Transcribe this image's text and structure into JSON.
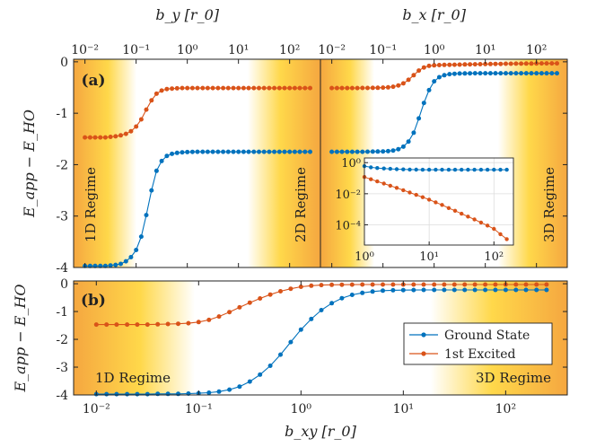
{
  "chart_data": [
    {
      "type": "line",
      "panel_label": "(a)",
      "ylabel": "E_app − E_HO",
      "xlabel_top_left": "b_y [r_0]",
      "xlabel_top_right": "b_x [r_0]",
      "xscale": "log",
      "ylim": [
        -4,
        0.05
      ],
      "yticks": [
        0,
        -1,
        -2,
        -3,
        -4
      ],
      "ytick_labels": [
        "0",
        "-1",
        "-2",
        "-3",
        "-4"
      ],
      "xlim_left": [
        0.006,
        400
      ],
      "xlim_right": [
        0.006,
        400
      ],
      "xticks": [
        0.01,
        0.1,
        1,
        10,
        100
      ],
      "xtick_labels": [
        "10⁻²",
        "10⁻¹",
        "10⁰",
        "10¹",
        "10²"
      ],
      "regime_labels": [
        "1D Regime",
        "2D Regime",
        "3D Regime"
      ],
      "left_half": {
        "x": [
          0.01,
          0.0126,
          0.0158,
          0.02,
          0.0251,
          0.0316,
          0.0398,
          0.0501,
          0.0631,
          0.0794,
          0.1,
          0.126,
          0.158,
          0.2,
          0.251,
          0.316,
          0.398,
          0.501,
          0.631,
          0.794,
          1.0,
          1.26,
          1.58,
          2.0,
          2.51,
          3.16,
          3.98,
          5.01,
          6.31,
          7.94,
          10,
          12.6,
          15.8,
          20,
          25.1,
          31.6,
          39.8,
          50.1,
          63.1,
          79.4,
          100,
          126,
          158,
          200,
          251
        ],
        "series": [
          {
            "name": "Ground State",
            "values": [
              -3.97,
              -3.97,
              -3.97,
              -3.97,
              -3.97,
              -3.96,
              -3.95,
              -3.93,
              -3.88,
              -3.8,
              -3.66,
              -3.4,
              -2.98,
              -2.5,
              -2.12,
              -1.93,
              -1.83,
              -1.79,
              -1.77,
              -1.76,
              -1.755,
              -1.752,
              -1.75,
              -1.75,
              -1.75,
              -1.75,
              -1.75,
              -1.75,
              -1.75,
              -1.75,
              -1.75,
              -1.75,
              -1.75,
              -1.75,
              -1.75,
              -1.75,
              -1.75,
              -1.75,
              -1.75,
              -1.75,
              -1.75,
              -1.75,
              -1.75,
              -1.75,
              -1.75
            ]
          },
          {
            "name": "1st Excited",
            "values": [
              -1.47,
              -1.47,
              -1.47,
              -1.47,
              -1.47,
              -1.46,
              -1.45,
              -1.43,
              -1.4,
              -1.35,
              -1.26,
              -1.12,
              -0.93,
              -0.75,
              -0.62,
              -0.56,
              -0.53,
              -0.52,
              -0.515,
              -0.51,
              -0.51,
              -0.51,
              -0.51,
              -0.51,
              -0.51,
              -0.51,
              -0.51,
              -0.51,
              -0.51,
              -0.51,
              -0.51,
              -0.51,
              -0.51,
              -0.51,
              -0.51,
              -0.51,
              -0.51,
              -0.51,
              -0.51,
              -0.51,
              -0.51,
              -0.51,
              -0.51,
              -0.51,
              -0.51
            ]
          }
        ]
      },
      "right_half": {
        "x": [
          0.01,
          0.0126,
          0.0158,
          0.02,
          0.0251,
          0.0316,
          0.0398,
          0.0501,
          0.0631,
          0.0794,
          0.1,
          0.126,
          0.158,
          0.2,
          0.251,
          0.316,
          0.398,
          0.501,
          0.631,
          0.794,
          1.0,
          1.26,
          1.58,
          2.0,
          2.51,
          3.16,
          3.98,
          5.01,
          6.31,
          7.94,
          10,
          12.6,
          15.8,
          20,
          25.1,
          31.6,
          39.8,
          50.1,
          63.1,
          79.4,
          100,
          126,
          158,
          200,
          251
        ],
        "series": [
          {
            "name": "Ground State",
            "values": [
              -1.75,
              -1.75,
              -1.75,
              -1.75,
              -1.75,
              -1.75,
              -1.749,
              -1.748,
              -1.747,
              -1.745,
              -1.742,
              -1.737,
              -1.725,
              -1.7,
              -1.65,
              -1.55,
              -1.38,
              -1.1,
              -0.8,
              -0.55,
              -0.38,
              -0.3,
              -0.26,
              -0.24,
              -0.232,
              -0.228,
              -0.225,
              -0.224,
              -0.223,
              -0.222,
              -0.222,
              -0.222,
              -0.222,
              -0.222,
              -0.222,
              -0.222,
              -0.222,
              -0.222,
              -0.222,
              -0.222,
              -0.222,
              -0.222,
              -0.222,
              -0.222,
              -0.222
            ]
          },
          {
            "name": "1st Excited",
            "values": [
              -0.51,
              -0.51,
              -0.51,
              -0.51,
              -0.51,
              -0.51,
              -0.509,
              -0.508,
              -0.507,
              -0.505,
              -0.502,
              -0.497,
              -0.485,
              -0.46,
              -0.42,
              -0.35,
              -0.26,
              -0.17,
              -0.11,
              -0.08,
              -0.068,
              -0.063,
              -0.06,
              -0.058,
              -0.056,
              -0.054,
              -0.052,
              -0.05,
              -0.048,
              -0.046,
              -0.045,
              -0.043,
              -0.041,
              -0.04,
              -0.038,
              -0.037,
              -0.036,
              -0.035,
              -0.034,
              -0.033,
              -0.032,
              -0.031,
              -0.03,
              -0.03,
              -0.03
            ]
          }
        ]
      }
    },
    {
      "type": "line",
      "panel_label": "(a) inset",
      "xscale": "log",
      "yscale": "log",
      "xlim": [
        1,
        200
      ],
      "ylim": [
        5e-06,
        2
      ],
      "xticks": [
        1,
        10,
        100
      ],
      "xtick_labels": [
        "10⁰",
        "10¹",
        "10²"
      ],
      "yticks": [
        1,
        0.01,
        0.0001
      ],
      "ytick_labels": [
        "10⁰",
        "10⁻²",
        "10⁻⁴"
      ],
      "x": [
        1.0,
        1.26,
        1.58,
        2.0,
        2.51,
        3.16,
        3.98,
        5.01,
        6.31,
        7.94,
        10,
        12.6,
        15.8,
        20,
        25.1,
        31.6,
        39.8,
        50.1,
        63.1,
        79.4,
        100,
        126,
        158
      ],
      "series": [
        {
          "name": "Ground State",
          "values": [
            0.6,
            0.5,
            0.45,
            0.42,
            0.4,
            0.38,
            0.37,
            0.36,
            0.355,
            0.35,
            0.35,
            0.35,
            0.35,
            0.35,
            0.35,
            0.35,
            0.35,
            0.35,
            0.35,
            0.35,
            0.35,
            0.35,
            0.35
          ]
        },
        {
          "name": "1st Excited",
          "values": [
            0.12,
            0.085,
            0.062,
            0.045,
            0.033,
            0.024,
            0.017,
            0.012,
            0.0085,
            0.006,
            0.0042,
            0.0028,
            0.0019,
            0.0012,
            0.0008,
            0.00052,
            0.00034,
            0.00022,
            0.00014,
            9e-05,
            5.5e-05,
            2.5e-05,
            1.2e-05
          ]
        }
      ]
    },
    {
      "type": "line",
      "panel_label": "(b)",
      "ylabel": "E_app − E_HO",
      "xlabel": "b_xy [r_0]",
      "xscale": "log",
      "xlim": [
        0.006,
        400
      ],
      "ylim": [
        -4,
        0.1
      ],
      "yticks": [
        0,
        -1,
        -2,
        -3,
        -4
      ],
      "ytick_labels": [
        "0",
        "-1",
        "-2",
        "-3",
        "-4"
      ],
      "xticks": [
        0.01,
        0.1,
        1,
        10,
        100
      ],
      "xtick_labels": [
        "10⁻²",
        "10⁻¹",
        "10⁰",
        "10¹",
        "10²"
      ],
      "regime_labels": [
        "1D Regime",
        "3D Regime"
      ],
      "legend": {
        "placement": "center-right",
        "entries": [
          "Ground State",
          "1st Excited"
        ]
      },
      "x": [
        0.01,
        0.0126,
        0.0158,
        0.02,
        0.0251,
        0.0316,
        0.0398,
        0.0501,
        0.0631,
        0.0794,
        0.1,
        0.126,
        0.158,
        0.2,
        0.251,
        0.316,
        0.398,
        0.501,
        0.631,
        0.794,
        1.0,
        1.26,
        1.58,
        2.0,
        2.51,
        3.16,
        3.98,
        5.01,
        6.31,
        7.94,
        10,
        12.6,
        15.8,
        20,
        25.1,
        31.6,
        39.8,
        50.1,
        63.1,
        79.4,
        100,
        126,
        158,
        200,
        251
      ],
      "series": [
        {
          "name": "Ground State",
          "values": [
            -3.97,
            -3.97,
            -3.97,
            -3.97,
            -3.97,
            -3.97,
            -3.96,
            -3.96,
            -3.96,
            -3.95,
            -3.94,
            -3.92,
            -3.88,
            -3.81,
            -3.7,
            -3.52,
            -3.27,
            -2.95,
            -2.55,
            -2.1,
            -1.65,
            -1.27,
            -0.95,
            -0.7,
            -0.52,
            -0.4,
            -0.33,
            -0.28,
            -0.25,
            -0.235,
            -0.23,
            -0.225,
            -0.222,
            -0.222,
            -0.222,
            -0.222,
            -0.222,
            -0.222,
            -0.222,
            -0.222,
            -0.222,
            -0.222,
            -0.222,
            -0.222,
            -0.222
          ]
        },
        {
          "name": "1st Excited",
          "values": [
            -1.47,
            -1.47,
            -1.47,
            -1.47,
            -1.47,
            -1.47,
            -1.46,
            -1.45,
            -1.44,
            -1.42,
            -1.38,
            -1.3,
            -1.18,
            -1.02,
            -0.85,
            -0.68,
            -0.53,
            -0.39,
            -0.27,
            -0.18,
            -0.11,
            -0.07,
            -0.05,
            -0.04,
            -0.035,
            -0.032,
            -0.03,
            -0.03,
            -0.03,
            -0.03,
            -0.03,
            -0.03,
            -0.03,
            -0.03,
            -0.03,
            -0.03,
            -0.03,
            -0.03,
            -0.03,
            -0.03,
            -0.03,
            -0.03,
            -0.03,
            -0.03,
            -0.03
          ]
        }
      ]
    }
  ],
  "colors": {
    "ground": "#0072bd",
    "excited": "#d95319",
    "regime_orange": "#f5a740",
    "regime_yellow": "#ffdd40"
  }
}
